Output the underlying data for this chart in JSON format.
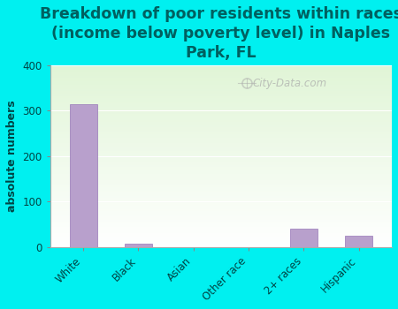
{
  "categories": [
    "White",
    "Black",
    "Asian",
    "Other race",
    "2+ races",
    "Hispanic"
  ],
  "values": [
    315,
    7,
    0,
    0,
    40,
    25
  ],
  "bar_color": "#b8a0cc",
  "bar_edge_color": "#9878b8",
  "title": "Breakdown of poor residents within races\n(income below poverty level) in Naples\nPark, FL",
  "ylabel": "absolute numbers",
  "ylim": [
    0,
    400
  ],
  "yticks": [
    0,
    100,
    200,
    300,
    400
  ],
  "background_color": "#00f0f0",
  "watermark": "City-Data.com",
  "title_fontsize": 12.5,
  "ylabel_fontsize": 9,
  "tick_fontsize": 8.5,
  "title_color": "#006060"
}
